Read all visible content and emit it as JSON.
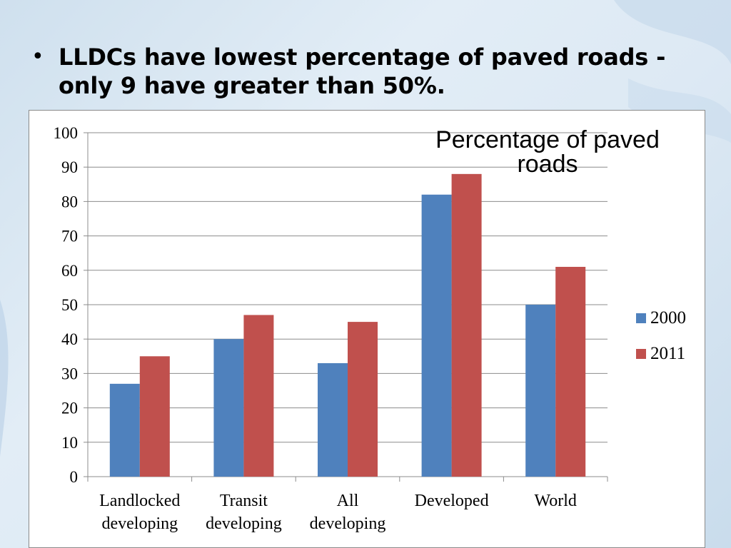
{
  "slide": {
    "bullet": "LLDCs have lowest percentage of paved roads - only 9 have greater than 50%."
  },
  "colors": {
    "series_2000": "#4f81bd",
    "series_2011": "#c0504d",
    "gridline": "#8c8c8c",
    "axis": "#8c8c8c"
  },
  "chart_data": {
    "type": "bar",
    "title": "Percentage of paved roads",
    "xlabel": "",
    "ylabel": "",
    "ylim": [
      0,
      100
    ],
    "y_ticks": [
      0,
      10,
      20,
      30,
      40,
      50,
      60,
      70,
      80,
      90,
      100
    ],
    "grid": true,
    "legend_position": "right",
    "categories": [
      [
        "Landlocked",
        "developing"
      ],
      [
        "Transit",
        "developing"
      ],
      [
        "All",
        "developing"
      ],
      [
        "Developed"
      ],
      [
        "World"
      ]
    ],
    "series": [
      {
        "name": "2000",
        "values": [
          27,
          40,
          33,
          82,
          50
        ]
      },
      {
        "name": "2011",
        "values": [
          35,
          47,
          45,
          88,
          61
        ]
      }
    ]
  }
}
